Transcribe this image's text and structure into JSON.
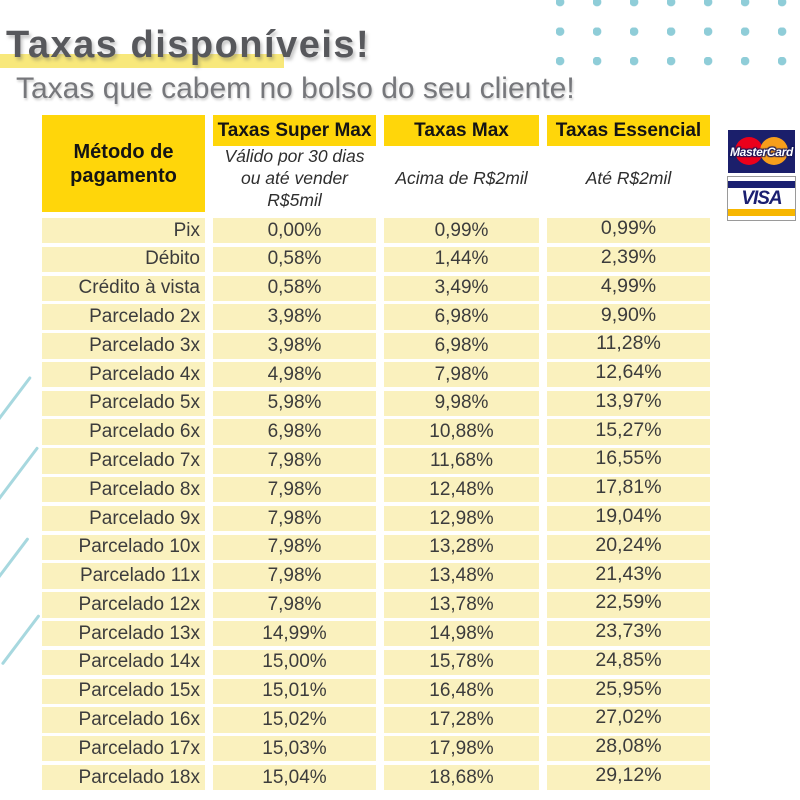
{
  "page": {
    "title": "Taxas disponíveis!",
    "subtitle": "Taxas que cabem no bolso do seu cliente!"
  },
  "table": {
    "method_header": "Método de pagamento",
    "columns": [
      {
        "label": "Taxas Super Max",
        "condition": "Válido por 30 dias ou até vender R$5mil"
      },
      {
        "label": "Taxas Max",
        "condition": "Acima de R$2mil"
      },
      {
        "label": "Taxas Essencial",
        "condition": "Até R$2mil"
      }
    ],
    "rows": [
      {
        "method": "Pix",
        "super_max": "0,00%",
        "max": "0,99%",
        "essencial": "0,99%"
      },
      {
        "method": "Débito",
        "super_max": "0,58%",
        "max": "1,44%",
        "essencial": "2,39%"
      },
      {
        "method": "Crédito à vista",
        "super_max": "0,58%",
        "max": "3,49%",
        "essencial": "4,99%"
      },
      {
        "method": "Parcelado 2x",
        "super_max": "3,98%",
        "max": "6,98%",
        "essencial": "9,90%"
      },
      {
        "method": "Parcelado 3x",
        "super_max": "3,98%",
        "max": "6,98%",
        "essencial": "11,28%"
      },
      {
        "method": "Parcelado 4x",
        "super_max": "4,98%",
        "max": "7,98%",
        "essencial": "12,64%"
      },
      {
        "method": "Parcelado 5x",
        "super_max": "5,98%",
        "max": "9,98%",
        "essencial": "13,97%"
      },
      {
        "method": "Parcelado 6x",
        "super_max": "6,98%",
        "max": "10,88%",
        "essencial": "15,27%"
      },
      {
        "method": "Parcelado 7x",
        "super_max": "7,98%",
        "max": "11,68%",
        "essencial": "16,55%"
      },
      {
        "method": "Parcelado 8x",
        "super_max": "7,98%",
        "max": "12,48%",
        "essencial": "17,81%"
      },
      {
        "method": "Parcelado 9x",
        "super_max": "7,98%",
        "max": "12,98%",
        "essencial": "19,04%"
      },
      {
        "method": "Parcelado 10x",
        "super_max": "7,98%",
        "max": "13,28%",
        "essencial": "20,24%"
      },
      {
        "method": "Parcelado 11x",
        "super_max": "7,98%",
        "max": "13,48%",
        "essencial": "21,43%"
      },
      {
        "method": "Parcelado 12x",
        "super_max": "7,98%",
        "max": "13,78%",
        "essencial": "22,59%"
      },
      {
        "method": "Parcelado 13x",
        "super_max": "14,99%",
        "max": "14,98%",
        "essencial": "23,73%"
      },
      {
        "method": "Parcelado 14x",
        "super_max": "15,00%",
        "max": "15,78%",
        "essencial": "24,85%"
      },
      {
        "method": "Parcelado 15x",
        "super_max": "15,01%",
        "max": "16,48%",
        "essencial": "25,95%"
      },
      {
        "method": "Parcelado 16x",
        "super_max": "15,02%",
        "max": "17,28%",
        "essencial": "27,02%"
      },
      {
        "method": "Parcelado 17x",
        "super_max": "15,03%",
        "max": "17,98%",
        "essencial": "28,08%"
      },
      {
        "method": "Parcelado 18x",
        "super_max": "15,04%",
        "max": "18,68%",
        "essencial": "29,12%"
      }
    ]
  },
  "logos": {
    "mastercard_label": "MasterCard",
    "visa_label": "VISA"
  },
  "colors": {
    "header_yellow": "#FFD60A",
    "row_yellow": "#FAF1BE",
    "title_highlight_yellow": "#F8E87B",
    "title_gray": "#57585C",
    "subtitle_gray": "#76777B",
    "accent_teal": "#8FCDD8",
    "mastercard_navy": "#1B1F6B",
    "mastercard_red": "#EB001B",
    "mastercard_orange": "#F79E1B",
    "visa_blue": "#1A1F71",
    "visa_gold": "#F7B600"
  }
}
